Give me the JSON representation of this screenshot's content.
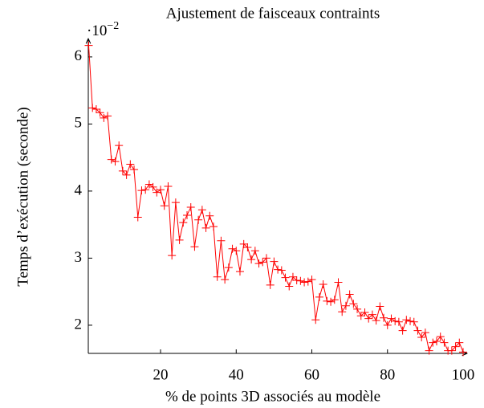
{
  "chart_data": {
    "type": "line",
    "title": "Ajustement de faisceaux contraints",
    "x_label": "% de points 3D associés au modèle",
    "y_label": "Temps d’exécution (seconde)",
    "y_scale_label": {
      "base": "·10",
      "exponent": "−2"
    },
    "color": "#ff0000",
    "marker": "+",
    "x": [
      1,
      2,
      3,
      4,
      5,
      6,
      7,
      8,
      9,
      10,
      11,
      12,
      13,
      14,
      15,
      16,
      17,
      18,
      19,
      20,
      21,
      22,
      23,
      24,
      25,
      26,
      27,
      28,
      29,
      30,
      31,
      32,
      33,
      34,
      35,
      36,
      37,
      38,
      39,
      40,
      41,
      42,
      43,
      44,
      45,
      46,
      47,
      48,
      49,
      50,
      51,
      52,
      53,
      54,
      55,
      56,
      57,
      58,
      59,
      60,
      61,
      62,
      63,
      64,
      65,
      66,
      67,
      68,
      69,
      70,
      71,
      72,
      73,
      74,
      75,
      76,
      77,
      78,
      79,
      80,
      81,
      82,
      83,
      84,
      85,
      86,
      87,
      88,
      89,
      90,
      91,
      92,
      93,
      94,
      95,
      96,
      97,
      98,
      99,
      100
    ],
    "values": [
      6.17,
      5.24,
      5.22,
      5.17,
      5.09,
      5.12,
      4.47,
      4.44,
      4.68,
      4.3,
      4.24,
      4.4,
      4.32,
      3.61,
      4.01,
      4.02,
      4.1,
      4.06,
      3.98,
      4.02,
      3.78,
      4.07,
      3.04,
      3.83,
      3.27,
      3.53,
      3.64,
      3.76,
      3.17,
      3.57,
      3.72,
      3.45,
      3.63,
      3.47,
      2.72,
      3.26,
      2.68,
      2.86,
      3.14,
      3.11,
      2.8,
      3.21,
      3.16,
      2.98,
      3.11,
      2.92,
      2.94,
      3.0,
      2.6,
      2.95,
      2.83,
      2.82,
      2.71,
      2.58,
      2.72,
      2.67,
      2.66,
      2.64,
      2.65,
      2.68,
      2.08,
      2.42,
      2.61,
      2.36,
      2.35,
      2.38,
      2.64,
      2.2,
      2.29,
      2.46,
      2.32,
      2.24,
      2.14,
      2.19,
      2.1,
      2.16,
      2.07,
      2.28,
      2.11,
      2.0,
      2.1,
      2.06,
      2.05,
      1.92,
      2.08,
      2.06,
      2.05,
      1.92,
      1.82,
      1.89,
      1.62,
      1.74,
      1.76,
      1.83,
      1.74,
      1.62,
      1.62,
      1.68,
      1.74,
      1.6
    ],
    "xlim": [
      1,
      100
    ],
    "ylim": [
      1.58,
      6.25
    ],
    "xticks": [
      20,
      40,
      60,
      80,
      100
    ],
    "yticks": [
      2,
      3,
      4,
      5,
      6
    ]
  }
}
